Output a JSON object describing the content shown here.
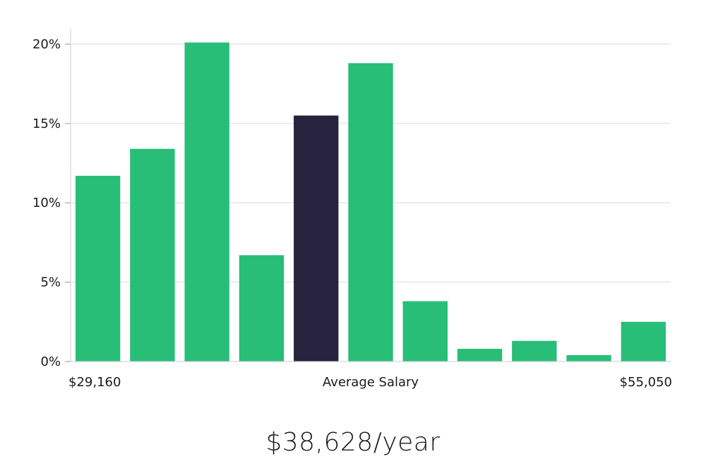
{
  "colors": {
    "bar": "#28be78",
    "highlight": "#27233f",
    "grid": "#dcdcdc",
    "axis": "#cfcfcf"
  },
  "chart_data": {
    "type": "bar",
    "title": "",
    "ylabel": "",
    "xlabel": "Average Salary",
    "x_start_label": "$29,160",
    "x_end_label": "$55,050",
    "ylim": [
      0,
      21
    ],
    "yticks": [
      0,
      5,
      10,
      15,
      20
    ],
    "ytick_labels": [
      "0%",
      "5%",
      "10%",
      "15%",
      "20%"
    ],
    "values": [
      11.7,
      13.4,
      20.1,
      6.7,
      15.5,
      18.8,
      3.8,
      0.8,
      1.3,
      0.4,
      2.5
    ],
    "highlight_index": 4
  },
  "footer": {
    "salary": "$38,628/year"
  }
}
